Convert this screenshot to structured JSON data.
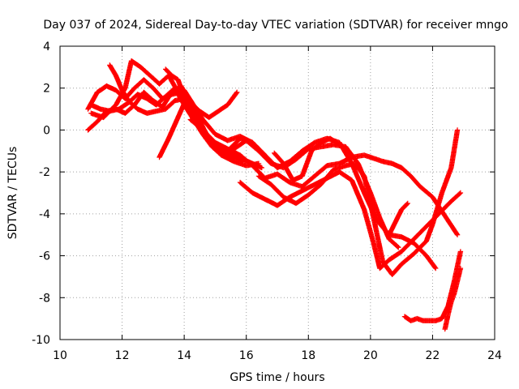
{
  "chart_data": {
    "type": "scatter",
    "title": "Day 037 of 2024, Sidereal Day-to-day VTEC variation (SDTVAR) for receiver mngo",
    "xlabel": "GPS time / hours",
    "ylabel": "SDTVAR / TECUs",
    "xlim": [
      10,
      24
    ],
    "ylim": [
      -10,
      4
    ],
    "xticks": [
      10,
      12,
      14,
      16,
      18,
      20,
      22,
      24
    ],
    "yticks": [
      -10,
      -8,
      -6,
      -4,
      -2,
      0,
      2,
      4
    ],
    "grid": true,
    "marker": "plus",
    "color": "#ff0000",
    "series": [
      {
        "x": [
          10.9,
          11.2,
          11.5,
          11.8,
          12.1,
          12.4,
          12.7,
          13.0,
          13.3,
          13.6,
          13.9,
          14.2,
          14.5,
          14.8,
          15.1,
          15.4,
          15.7
        ],
        "y": [
          0.0,
          0.4,
          0.9,
          1.0,
          0.8,
          1.2,
          1.8,
          1.4,
          1.1,
          1.8,
          2.1,
          1.3,
          0.9,
          0.6,
          0.9,
          1.2,
          1.8
        ]
      },
      {
        "x": [
          10.9,
          11.2,
          11.5,
          11.8,
          12.1,
          12.4,
          12.7,
          13.0,
          13.3,
          13.6,
          13.9,
          14.2,
          14.5,
          14.8,
          15.1,
          15.5,
          15.9
        ],
        "y": [
          1.0,
          1.8,
          2.1,
          1.9,
          1.5,
          2.0,
          2.4,
          2.0,
          1.5,
          1.7,
          1.8,
          1.4,
          0.4,
          -0.4,
          -1.0,
          -1.2,
          -1.5
        ]
      },
      {
        "x": [
          11.0,
          11.3,
          11.6,
          11.9,
          12.2,
          12.5,
          12.8,
          13.1,
          13.4,
          13.7,
          14.0,
          14.3,
          14.6,
          14.9,
          15.2,
          15.6,
          16.0,
          16.4
        ],
        "y": [
          1.2,
          1.0,
          0.9,
          1.0,
          1.3,
          1.7,
          1.5,
          1.2,
          1.6,
          2.0,
          1.2,
          0.5,
          -0.2,
          -0.8,
          -1.2,
          -1.5,
          -1.7,
          -1.6
        ]
      },
      {
        "x": [
          11.0,
          11.4,
          11.8,
          12.1,
          12.3,
          12.6,
          12.9,
          13.2,
          13.5,
          13.8,
          14.1,
          14.4,
          14.7,
          15.0,
          15.4,
          15.8,
          16.2,
          16.6
        ],
        "y": [
          0.8,
          0.6,
          1.2,
          2.0,
          3.3,
          3.0,
          2.6,
          2.2,
          2.6,
          1.8,
          1.2,
          0.4,
          -0.3,
          -0.8,
          -1.0,
          -0.4,
          -0.6,
          -1.2
        ]
      },
      {
        "x": [
          11.6,
          11.8,
          12.0,
          12.2,
          12.5,
          12.8,
          13.1,
          13.4,
          13.7,
          14.0,
          14.3,
          14.6,
          14.9,
          15.2
        ],
        "y": [
          3.1,
          2.6,
          1.9,
          1.4,
          1.0,
          0.8,
          0.9,
          1.0,
          1.4,
          1.5,
          0.8,
          0.1,
          -0.7,
          -1.2
        ]
      },
      {
        "x": [
          13.2,
          13.5,
          13.8,
          14.1,
          14.4,
          14.7,
          15.0,
          15.3,
          15.6,
          15.9,
          16.2,
          16.5
        ],
        "y": [
          -1.3,
          -0.4,
          0.6,
          1.6,
          0.8,
          -0.2,
          -0.8,
          -1.1,
          -1.3,
          -1.4,
          -1.6,
          -1.8
        ]
      },
      {
        "x": [
          13.4,
          13.6,
          13.8,
          14.0,
          14.2,
          14.4,
          14.7,
          15.0,
          15.3,
          15.6,
          16.0,
          16.4,
          16.8,
          17.2,
          17.6,
          18.0,
          18.4,
          18.8,
          19.2,
          19.6,
          20.0,
          20.3,
          20.6,
          20.9
        ],
        "y": [
          2.9,
          2.6,
          2.4,
          1.6,
          0.9,
          0.3,
          -0.4,
          -0.9,
          -1.2,
          -0.9,
          -0.5,
          -1.0,
          -1.6,
          -1.8,
          -1.4,
          -0.9,
          -0.8,
          -0.7,
          -0.8,
          -1.6,
          -3.0,
          -4.2,
          -5.2,
          -5.6
        ]
      },
      {
        "x": [
          14.0,
          14.3,
          14.6,
          15.0,
          15.4,
          15.8,
          16.2,
          16.6,
          17.0,
          17.4,
          17.8,
          18.2,
          18.6,
          19.0,
          19.4,
          19.8,
          20.2,
          20.6,
          21.0,
          21.4,
          21.8,
          22.1
        ],
        "y": [
          1.9,
          1.2,
          0.5,
          -0.2,
          -0.5,
          -0.3,
          -0.6,
          -1.2,
          -1.8,
          -1.5,
          -1.0,
          -0.6,
          -0.4,
          -0.6,
          -1.6,
          -3.0,
          -4.3,
          -5.0,
          -5.1,
          -5.4,
          -6.0,
          -6.6
        ]
      },
      {
        "x": [
          14.2,
          14.6,
          15.0,
          15.4,
          15.8,
          16.2,
          16.6,
          17.0,
          17.4,
          17.8,
          18.2,
          18.6,
          19.0,
          19.4,
          19.8,
          20.2,
          20.4,
          20.7,
          21.0,
          21.3,
          21.6,
          22.0,
          22.4,
          22.8
        ],
        "y": [
          0.5,
          0.0,
          -0.6,
          -0.9,
          -1.2,
          -1.7,
          -2.3,
          -2.1,
          -2.5,
          -2.7,
          -2.2,
          -1.7,
          -1.6,
          -1.3,
          -1.2,
          -1.4,
          -1.5,
          -1.6,
          -1.8,
          -2.2,
          -2.7,
          -3.2,
          -4.1,
          -5.0
        ]
      },
      {
        "x": [
          15.8,
          16.2,
          16.6,
          17.0,
          17.4,
          17.8,
          18.2,
          18.6,
          19.0,
          19.4,
          19.8,
          20.1,
          20.3,
          20.6,
          21.0,
          21.4,
          21.8,
          22.2,
          22.6,
          22.9
        ],
        "y": [
          -2.5,
          -3.0,
          -3.3,
          -3.6,
          -3.2,
          -2.9,
          -2.6,
          -2.3,
          -2.0,
          -2.4,
          -3.8,
          -5.4,
          -6.6,
          -6.2,
          -5.8,
          -5.2,
          -4.6,
          -4.0,
          -3.4,
          -3.0
        ]
      },
      {
        "x": [
          16.4,
          16.8,
          17.2,
          17.6,
          18.0,
          18.4,
          18.8,
          19.2,
          19.5,
          19.8,
          20.1,
          20.4,
          20.7,
          21.0,
          21.4,
          21.8,
          22.0,
          22.3,
          22.6,
          22.8
        ],
        "y": [
          -2.2,
          -2.6,
          -3.2,
          -3.5,
          -3.1,
          -2.6,
          -1.9,
          -1.7,
          -1.6,
          -2.2,
          -4.2,
          -6.3,
          -6.9,
          -6.4,
          -5.9,
          -5.3,
          -4.5,
          -3.0,
          -1.8,
          0.0
        ]
      },
      {
        "x": [
          16.9,
          17.2,
          17.5,
          17.8,
          18.1,
          18.4,
          18.7,
          19.0
        ],
        "y": [
          -1.1,
          -1.6,
          -2.4,
          -2.2,
          -1.0,
          -0.6,
          -0.4,
          -0.7
        ]
      },
      {
        "x": [
          20.6,
          20.8,
          21.0,
          21.2
        ],
        "y": [
          -5.0,
          -4.4,
          -3.8,
          -3.5
        ]
      },
      {
        "x": [
          21.1,
          21.3,
          21.5,
          21.7,
          21.9,
          22.1,
          22.3,
          22.5,
          22.7,
          22.9
        ],
        "y": [
          -8.9,
          -9.1,
          -9.0,
          -9.1,
          -9.1,
          -9.1,
          -9.0,
          -8.4,
          -7.2,
          -5.8
        ]
      },
      {
        "x": [
          22.4,
          22.5,
          22.6,
          22.7,
          22.8,
          22.9
        ],
        "y": [
          -9.5,
          -8.8,
          -8.2,
          -7.8,
          -7.2,
          -6.6
        ]
      }
    ]
  }
}
